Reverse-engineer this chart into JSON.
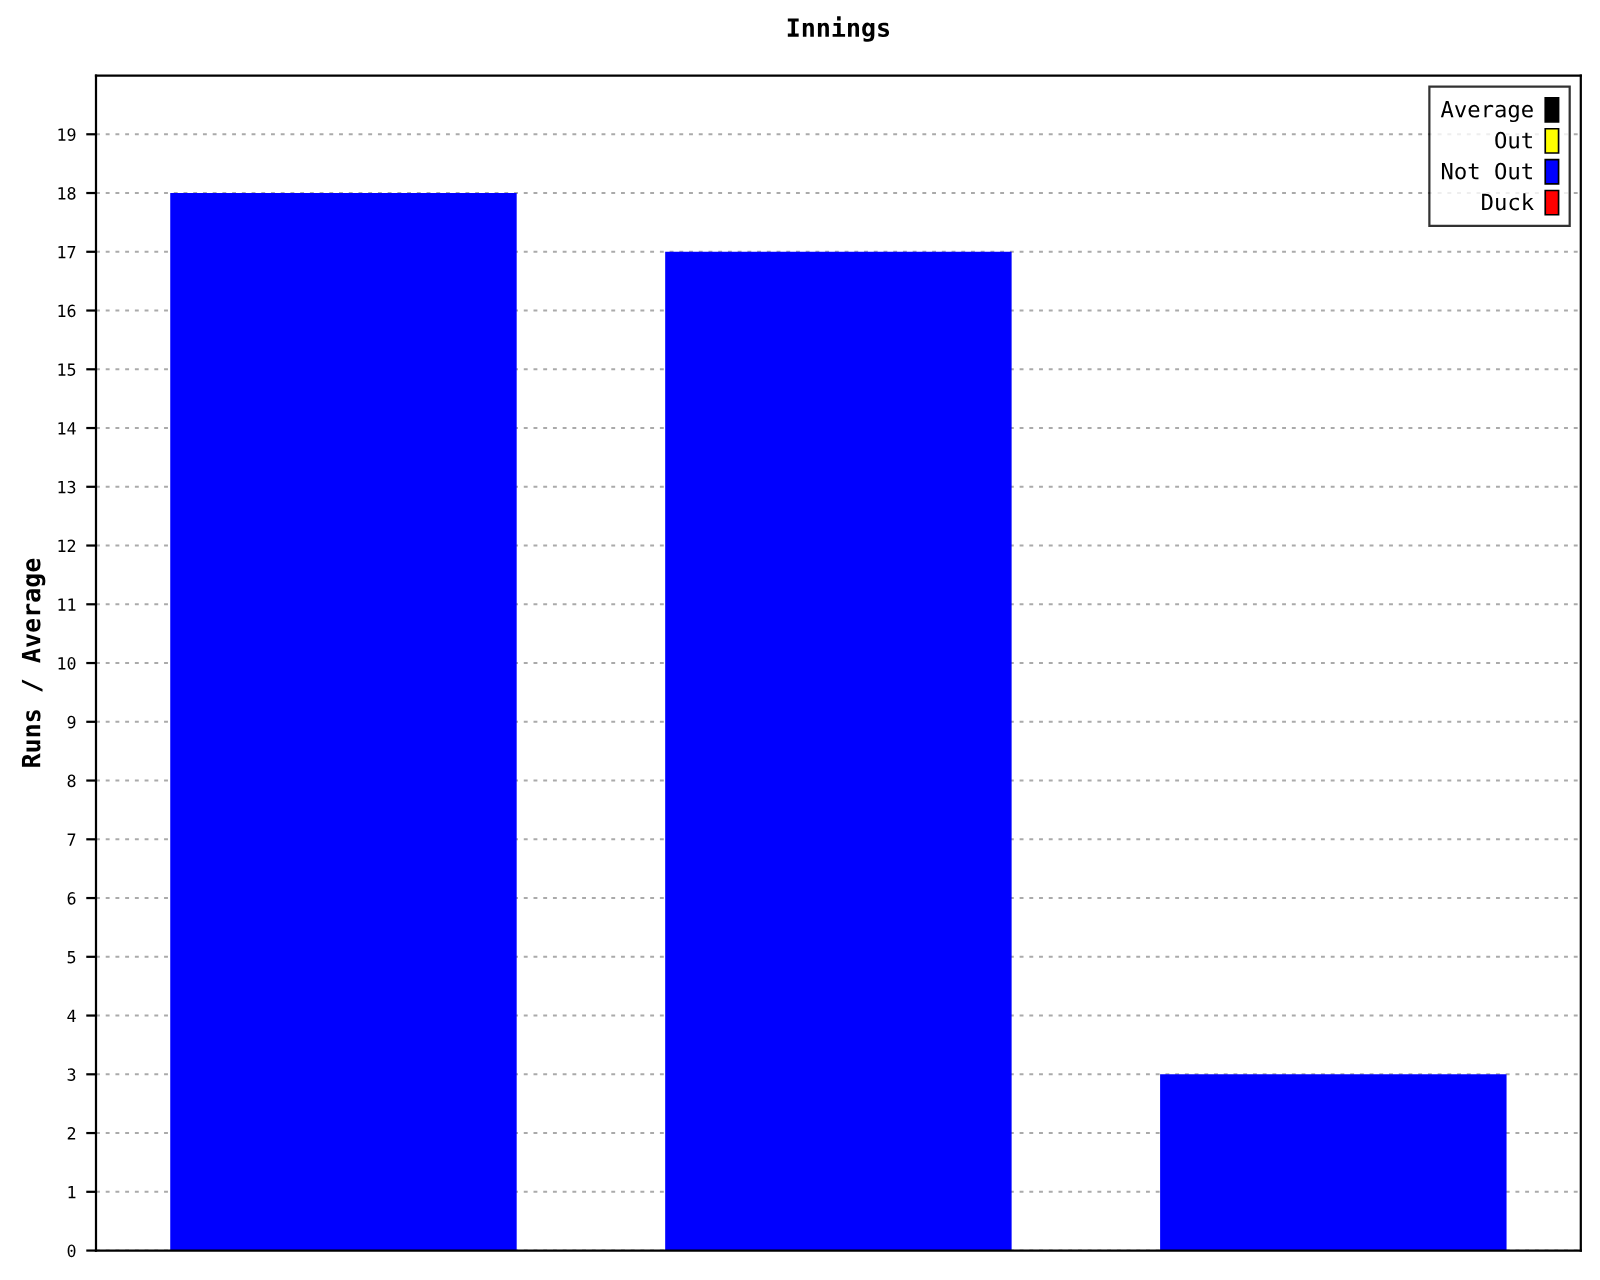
{
  "chart_data": {
    "type": "bar",
    "title": "Innings",
    "ylabel": "Runs / Average",
    "categories": [
      null,
      null,
      null
    ],
    "series": [
      {
        "name": "Average",
        "color": "#000000",
        "values": [
          null,
          null,
          null
        ]
      },
      {
        "name": "Out",
        "color": "#ffff00",
        "values": [
          null,
          null,
          null
        ]
      },
      {
        "name": "Not Out",
        "color": "#0000ff",
        "values": [
          18,
          17,
          3
        ]
      },
      {
        "name": "Duck",
        "color": "#ff0000",
        "values": [
          null,
          null,
          null
        ]
      }
    ],
    "ylim": [
      0,
      20
    ],
    "yticks": [
      0,
      1,
      2,
      3,
      4,
      5,
      6,
      7,
      8,
      9,
      10,
      11,
      12,
      13,
      14,
      15,
      16,
      17,
      18,
      19
    ],
    "grid": "y",
    "legend": "top right",
    "tick_labels": "y"
  }
}
